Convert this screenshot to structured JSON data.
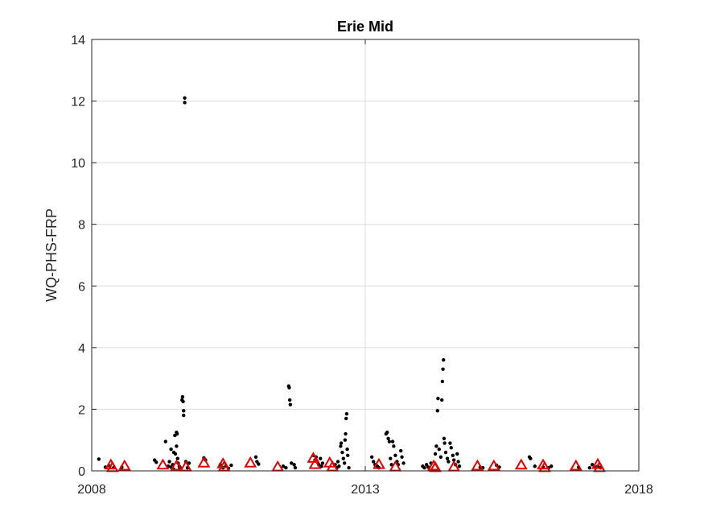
{
  "chart_data": {
    "type": "scatter",
    "title": "Erie Mid",
    "xlabel": "",
    "ylabel": "WQ-PHS-FRP",
    "xlim": [
      2008,
      2018
    ],
    "ylim": [
      0,
      14
    ],
    "xticks": [
      2008,
      2013,
      2018
    ],
    "yticks": [
      0,
      2,
      4,
      6,
      8,
      10,
      12,
      14
    ],
    "grid": true,
    "legend": "none",
    "colors": {
      "dots": "#000000",
      "triangles": "#e60000",
      "grid": "#dcdcdc",
      "axis": "#262626"
    },
    "series": [
      {
        "marker": "dot",
        "points": [
          [
            2008.13,
            0.38
          ],
          [
            2008.25,
            0.12
          ],
          [
            2008.33,
            0.15
          ],
          [
            2008.4,
            0.1
          ],
          [
            2008.55,
            0.12
          ],
          [
            2009.15,
            0.35
          ],
          [
            2009.18,
            0.28
          ],
          [
            2009.35,
            0.95
          ],
          [
            2009.4,
            0.15
          ],
          [
            2009.42,
            0.3
          ],
          [
            2009.45,
            0.12
          ],
          [
            2009.48,
            0.2
          ],
          [
            2009.5,
            0.05
          ],
          [
            2009.52,
            1.15
          ],
          [
            2009.53,
            0.55
          ],
          [
            2009.55,
            1.25
          ],
          [
            2009.56,
            1.2
          ],
          [
            2009.57,
            0.4
          ],
          [
            2009.58,
            0.25
          ],
          [
            2009.6,
            0.15
          ],
          [
            2009.61,
            0.08
          ],
          [
            2009.62,
            0.1
          ],
          [
            2009.65,
            2.3
          ],
          [
            2009.66,
            2.4
          ],
          [
            2009.67,
            2.25
          ],
          [
            2009.68,
            1.95
          ],
          [
            2009.68,
            1.8
          ],
          [
            2009.7,
            12.1
          ],
          [
            2009.7,
            11.95
          ],
          [
            2009.72,
            0.3
          ],
          [
            2009.75,
            0.1
          ],
          [
            2009.78,
            0.25
          ],
          [
            2009.45,
            0.7
          ],
          [
            2009.5,
            0.6
          ],
          [
            2009.55,
            0.8
          ],
          [
            2010.05,
            0.42
          ],
          [
            2010.08,
            0.35
          ],
          [
            2010.35,
            0.2
          ],
          [
            2010.4,
            0.1
          ],
          [
            2010.45,
            0.15
          ],
          [
            2010.5,
            0.08
          ],
          [
            2010.55,
            0.18
          ],
          [
            2011.0,
            0.45
          ],
          [
            2011.02,
            0.3
          ],
          [
            2011.05,
            0.22
          ],
          [
            2011.5,
            0.15
          ],
          [
            2011.55,
            0.1
          ],
          [
            2011.6,
            2.75
          ],
          [
            2011.61,
            2.7
          ],
          [
            2011.62,
            2.3
          ],
          [
            2011.63,
            2.15
          ],
          [
            2011.65,
            0.25
          ],
          [
            2011.7,
            0.2
          ],
          [
            2011.72,
            0.1
          ],
          [
            2012.05,
            0.5
          ],
          [
            2012.08,
            0.35
          ],
          [
            2012.1,
            0.45
          ],
          [
            2012.12,
            0.3
          ],
          [
            2012.15,
            0.2
          ],
          [
            2012.18,
            0.4
          ],
          [
            2012.2,
            0.15
          ],
          [
            2012.22,
            0.25
          ],
          [
            2012.45,
            0.2
          ],
          [
            2012.48,
            0.1
          ],
          [
            2012.5,
            0.3
          ],
          [
            2012.52,
            0.15
          ],
          [
            2012.55,
            0.8
          ],
          [
            2012.56,
            0.9
          ],
          [
            2012.58,
            0.6
          ],
          [
            2012.6,
            0.4
          ],
          [
            2012.62,
            0.25
          ],
          [
            2012.63,
            1.0
          ],
          [
            2012.64,
            1.2
          ],
          [
            2012.65,
            1.7
          ],
          [
            2012.66,
            1.85
          ],
          [
            2012.67,
            0.7
          ],
          [
            2012.68,
            0.5
          ],
          [
            2012.7,
            0.1
          ],
          [
            2013.12,
            0.45
          ],
          [
            2013.15,
            0.3
          ],
          [
            2013.18,
            0.2
          ],
          [
            2013.22,
            0.15
          ],
          [
            2013.25,
            0.1
          ],
          [
            2013.38,
            1.2
          ],
          [
            2013.4,
            1.25
          ],
          [
            2013.42,
            1.05
          ],
          [
            2013.44,
            0.95
          ],
          [
            2013.46,
            0.4
          ],
          [
            2013.48,
            0.2
          ],
          [
            2013.5,
            0.95
          ],
          [
            2013.52,
            0.8
          ],
          [
            2013.55,
            0.5
          ],
          [
            2013.58,
            0.3
          ],
          [
            2013.6,
            0.2
          ],
          [
            2013.65,
            0.65
          ],
          [
            2013.67,
            0.45
          ],
          [
            2013.7,
            0.25
          ],
          [
            2014.05,
            0.15
          ],
          [
            2014.08,
            0.1
          ],
          [
            2014.12,
            0.2
          ],
          [
            2014.15,
            0.12
          ],
          [
            2014.2,
            0.25
          ],
          [
            2014.28,
            0.55
          ],
          [
            2014.3,
            0.8
          ],
          [
            2014.32,
            1.95
          ],
          [
            2014.33,
            2.35
          ],
          [
            2014.35,
            0.7
          ],
          [
            2014.38,
            0.45
          ],
          [
            2014.4,
            2.3
          ],
          [
            2014.41,
            2.9
          ],
          [
            2014.42,
            3.3
          ],
          [
            2014.43,
            3.6
          ],
          [
            2014.44,
            1.05
          ],
          [
            2014.45,
            0.9
          ],
          [
            2014.47,
            0.6
          ],
          [
            2014.5,
            0.4
          ],
          [
            2014.52,
            0.3
          ],
          [
            2014.55,
            0.9
          ],
          [
            2014.57,
            0.75
          ],
          [
            2014.6,
            0.5
          ],
          [
            2014.62,
            0.35
          ],
          [
            2014.65,
            0.2
          ],
          [
            2014.68,
            0.55
          ],
          [
            2014.7,
            0.3
          ],
          [
            2014.72,
            0.15
          ],
          [
            2015.1,
            0.12
          ],
          [
            2015.15,
            0.1
          ],
          [
            2015.4,
            0.18
          ],
          [
            2015.45,
            0.12
          ],
          [
            2016.0,
            0.45
          ],
          [
            2016.02,
            0.4
          ],
          [
            2016.1,
            0.15
          ],
          [
            2016.25,
            0.12
          ],
          [
            2016.35,
            0.1
          ],
          [
            2016.4,
            0.15
          ],
          [
            2016.9,
            0.12
          ],
          [
            2017.1,
            0.1
          ],
          [
            2017.15,
            0.2
          ],
          [
            2017.2,
            0.12
          ],
          [
            2017.25,
            0.15
          ],
          [
            2017.3,
            0.1
          ]
        ]
      },
      {
        "marker": "triangle",
        "points": [
          [
            2008.35,
            0.18
          ],
          [
            2008.38,
            0.1
          ],
          [
            2008.6,
            0.15
          ],
          [
            2009.3,
            0.18
          ],
          [
            2009.55,
            0.15
          ],
          [
            2009.72,
            0.12
          ],
          [
            2010.05,
            0.25
          ],
          [
            2010.4,
            0.22
          ],
          [
            2010.42,
            0.12
          ],
          [
            2010.9,
            0.25
          ],
          [
            2011.4,
            0.12
          ],
          [
            2012.05,
            0.4
          ],
          [
            2012.08,
            0.2
          ],
          [
            2012.35,
            0.25
          ],
          [
            2012.4,
            0.12
          ],
          [
            2013.25,
            0.2
          ],
          [
            2013.55,
            0.12
          ],
          [
            2014.25,
            0.15
          ],
          [
            2014.28,
            0.1
          ],
          [
            2014.62,
            0.12
          ],
          [
            2015.05,
            0.15
          ],
          [
            2015.35,
            0.15
          ],
          [
            2015.85,
            0.18
          ],
          [
            2016.25,
            0.18
          ],
          [
            2016.28,
            0.1
          ],
          [
            2016.85,
            0.15
          ],
          [
            2017.25,
            0.2
          ],
          [
            2017.28,
            0.1
          ]
        ]
      }
    ]
  }
}
